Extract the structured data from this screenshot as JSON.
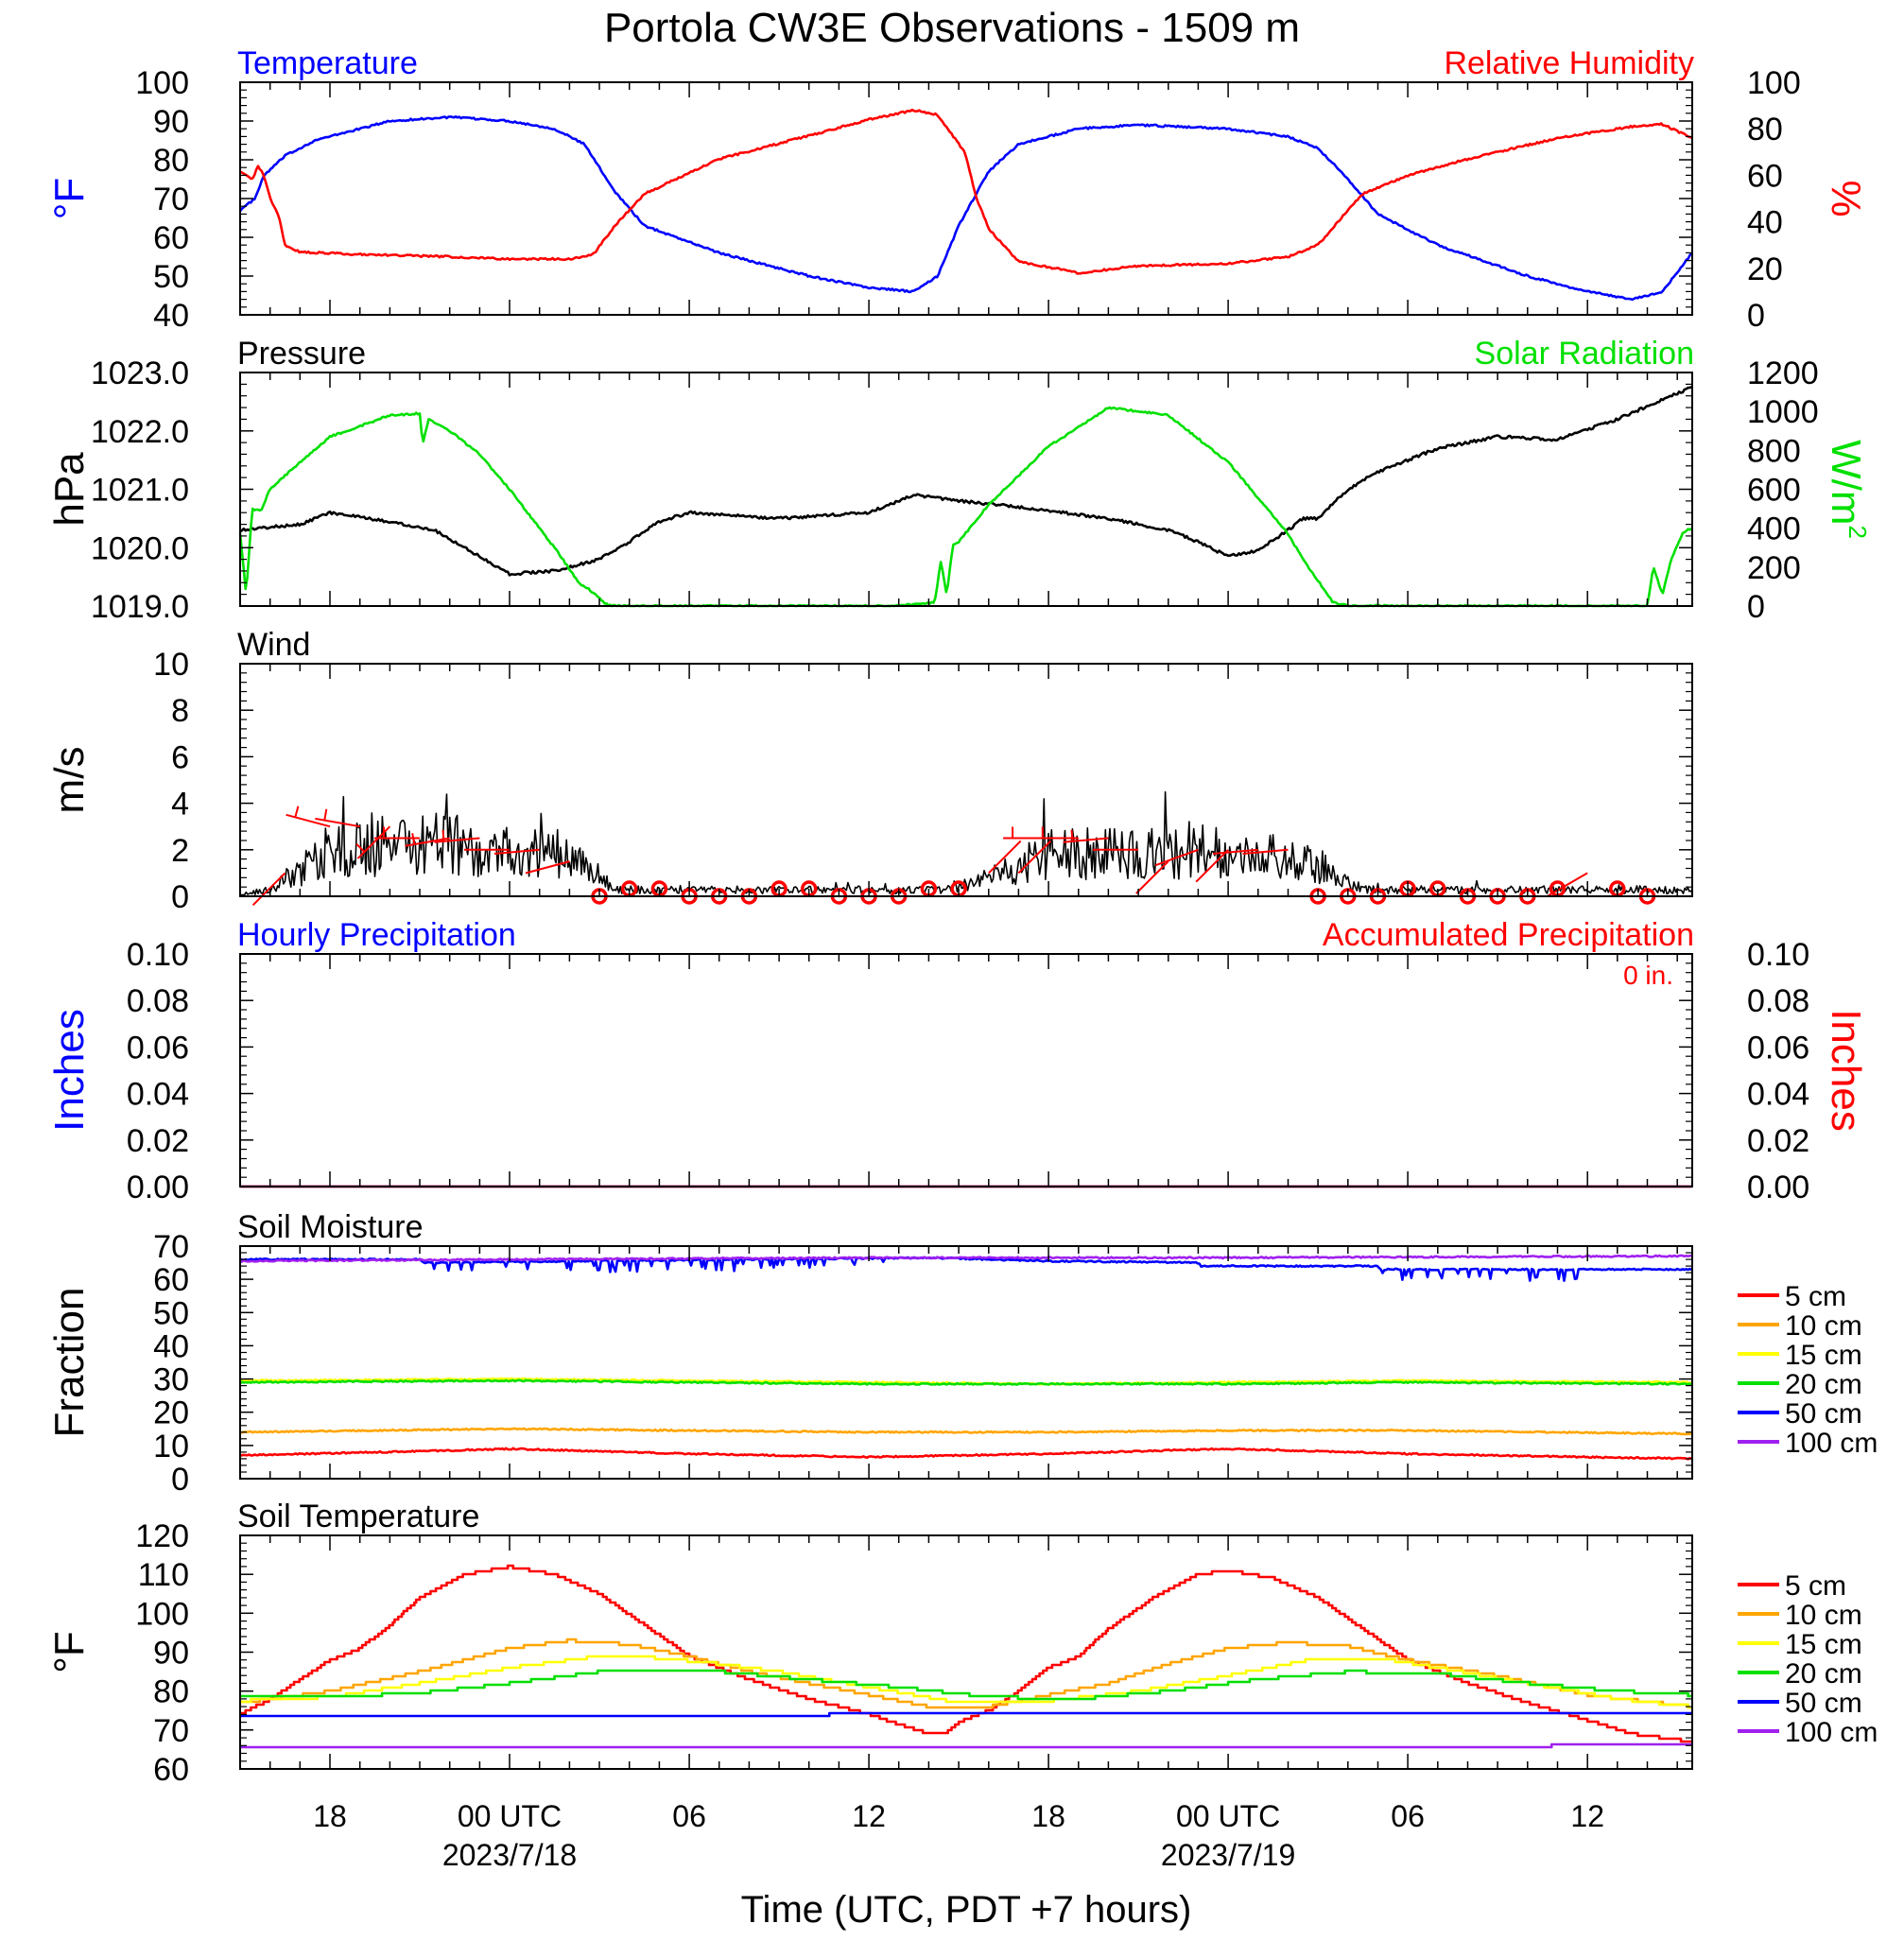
{
  "title": "Portola CW3E Observations - 1509 m",
  "xlabel": "Time (UTC, PDT +7 hours)",
  "colors": {
    "temperature": "#0000ff",
    "humidity": "#ff0000",
    "pressure": "#000000",
    "solar": "#00e000",
    "wind": "#000000",
    "barb": "#ff0000",
    "soil": [
      "#ff0000",
      "#ffa500",
      "#ffff00",
      "#00e000",
      "#0000ff",
      "#a020f0"
    ]
  },
  "time_axis": {
    "start_hour": -9.0,
    "end_hour": 39.5,
    "major_hours": [
      -6,
      0,
      6,
      12,
      18,
      24,
      30,
      36
    ],
    "tick_labels": [
      "18",
      "00 UTC",
      "06",
      "12",
      "18",
      "00 UTC",
      "06",
      "12"
    ],
    "date_labels": [
      {
        "hour": 0,
        "text": "2023/7/18"
      },
      {
        "hour": 24,
        "text": "2023/7/19"
      }
    ]
  },
  "chart_data": [
    {
      "type": "line",
      "id": "temp_rh",
      "left_title": "Temperature",
      "right_title": "Relative Humidity",
      "ylabel_left": "°F",
      "ylabel_right": "%",
      "left_ylim": [
        40,
        100
      ],
      "left_ticks": [
        "40",
        "50",
        "60",
        "70",
        "80",
        "90",
        "100"
      ],
      "right_ylim": [
        0,
        100
      ],
      "right_ticks": [
        "0",
        "20",
        "40",
        "60",
        "80",
        "100"
      ],
      "series": [
        {
          "name": "Temperature",
          "axis": "left",
          "color_key": "temperature",
          "x": [
            -9,
            -8.5,
            -8.2,
            -7.5,
            -6.5,
            -4,
            -2,
            0,
            1.5,
            2.5,
            3.5,
            4.5,
            7,
            10,
            12,
            13.5,
            14.3,
            15,
            16,
            17,
            19,
            21,
            24,
            26,
            27,
            28,
            29,
            31,
            34,
            36,
            37.5,
            38.5,
            39.5
          ],
          "y": [
            67,
            70,
            76,
            81,
            85,
            90,
            91,
            90,
            88,
            84,
            72,
            63,
            56,
            50,
            47,
            46,
            50,
            63,
            77,
            84,
            88,
            89,
            88,
            86,
            83,
            75,
            66,
            58,
            50,
            46,
            44,
            46,
            56
          ]
        },
        {
          "name": "Relative Humidity",
          "axis": "right",
          "color_key": "humidity",
          "x": [
            -9,
            -8.6,
            -8.4,
            -8.2,
            -8,
            -7.7,
            -7.5,
            -7,
            -5,
            -2,
            0,
            2,
            2.8,
            3.5,
            4.5,
            7,
            10,
            12,
            13.5,
            14.3,
            15.2,
            15.6,
            16,
            17,
            19,
            21,
            24,
            26,
            27,
            28,
            28.5,
            30,
            32,
            35,
            37.5,
            38.5,
            39.5
          ],
          "y": [
            62,
            58,
            64,
            60,
            50,
            42,
            30,
            27,
            26,
            25,
            24,
            24,
            26,
            38,
            52,
            67,
            77,
            84,
            88,
            86,
            70,
            50,
            37,
            23,
            18,
            21,
            22,
            25,
            30,
            45,
            52,
            60,
            67,
            76,
            81,
            82,
            76
          ]
        }
      ]
    },
    {
      "type": "line",
      "id": "pressure_solar",
      "left_title": "Pressure",
      "right_title": "Solar Radiation",
      "ylabel_left": "hPa",
      "ylabel_right": "W/m",
      "ylabel_right_sup": "2",
      "left_ylim": [
        1019.0,
        1023.0
      ],
      "left_ticks": [
        "1019.0",
        "1020.0",
        "1021.0",
        "1022.0",
        "1023.0"
      ],
      "right_ylim": [
        0,
        1200
      ],
      "right_ticks": [
        "0",
        "200",
        "400",
        "600",
        "800",
        "1000",
        "1200"
      ],
      "series": [
        {
          "name": "Pressure",
          "axis": "left",
          "color_key": "pressure",
          "x": [
            -9,
            -7,
            -6,
            -3.5,
            -2.5,
            -1.5,
            0,
            1.5,
            3,
            4,
            5,
            6,
            9,
            12,
            13.5,
            15,
            17,
            20,
            22,
            23,
            24,
            25,
            26,
            26.5,
            27,
            28,
            29,
            31,
            33,
            35,
            37,
            39.5
          ],
          "y": [
            1020.3,
            1020.4,
            1020.6,
            1020.4,
            1020.3,
            1020.0,
            1019.55,
            1019.6,
            1019.8,
            1020.1,
            1020.45,
            1020.6,
            1020.5,
            1020.6,
            1020.9,
            1020.8,
            1020.7,
            1020.5,
            1020.3,
            1020.1,
            1019.85,
            1019.95,
            1020.3,
            1020.5,
            1020.5,
            1021.0,
            1021.3,
            1021.7,
            1021.9,
            1021.85,
            1022.2,
            1022.75
          ]
        },
        {
          "name": "Solar Radiation",
          "axis": "right",
          "color_key": "solar",
          "x": [
            -9,
            -8.8,
            -8.6,
            -8.3,
            -8,
            -7,
            -6,
            -4,
            -3,
            -2.9,
            -2.7,
            -2,
            -1,
            0,
            1,
            1.5,
            2,
            2.3,
            2.8,
            3.2,
            3.6,
            10,
            13,
            14.2,
            14.4,
            14.6,
            14.8,
            15,
            16,
            18,
            20,
            22,
            24,
            26,
            26.5,
            27,
            27.5,
            28,
            35.5,
            38,
            38.2,
            38.5,
            38.8,
            39.2,
            39.5
          ],
          "y": [
            380,
            60,
            500,
            490,
            600,
            740,
            870,
            980,
            990,
            830,
            960,
            900,
            780,
            600,
            400,
            300,
            190,
            120,
            70,
            10,
            0,
            0,
            0,
            20,
            230,
            60,
            310,
            330,
            520,
            820,
            1020,
            980,
            740,
            370,
            240,
            130,
            20,
            0,
            0,
            0,
            200,
            60,
            240,
            380,
            400
          ]
        }
      ]
    },
    {
      "type": "line",
      "id": "wind",
      "left_title": "Wind",
      "ylabel_left": "m/s",
      "left_ylim": [
        0,
        10
      ],
      "left_ticks": [
        "0",
        "2",
        "4",
        "6",
        "8",
        "10"
      ],
      "series": [
        {
          "name": "Wind",
          "axis": "left",
          "color_key": "wind",
          "x": [
            -9,
            -8,
            -7.5,
            -6,
            -4,
            -2,
            0,
            1,
            2,
            2.5,
            3,
            3.5,
            5,
            10,
            14,
            14.5,
            15,
            16,
            18,
            20,
            24,
            26,
            27,
            28,
            28.5,
            30,
            35,
            39.5
          ],
          "y": [
            0.1,
            0.3,
            0.8,
            2.0,
            2.5,
            2.4,
            2.1,
            2.0,
            1.9,
            1.6,
            0.9,
            0.3,
            0.3,
            0.3,
            0.3,
            0.3,
            0.5,
            0.8,
            1.9,
            2.0,
            2.1,
            1.8,
            1.6,
            0.7,
            0.3,
            0.3,
            0.3,
            0.3
          ]
        }
      ],
      "barbs": [
        {
          "x": -7.5,
          "speed": 1,
          "dir": 225
        },
        {
          "x": -6,
          "speed": 3,
          "dir": 285
        },
        {
          "x": -5,
          "speed": 3,
          "dir": 280
        },
        {
          "x": -4,
          "speed": 3,
          "dir": 225
        },
        {
          "x": -3,
          "speed": 2.5,
          "dir": 270
        },
        {
          "x": -2,
          "speed": 2.5,
          "dir": 260
        },
        {
          "x": -1,
          "speed": 2.5,
          "dir": 265
        },
        {
          "x": 0,
          "speed": 2,
          "dir": 270
        },
        {
          "x": 1,
          "speed": 2,
          "dir": 265
        },
        {
          "x": 2,
          "speed": 1.5,
          "dir": 255
        },
        {
          "x": 16,
          "speed": 1,
          "dir": 45
        },
        {
          "x": 17,
          "speed": 1,
          "dir": 45
        },
        {
          "x": 18,
          "speed": 2.5,
          "dir": 270
        },
        {
          "x": 19,
          "speed": 2.5,
          "dir": 270
        },
        {
          "x": 20,
          "speed": 2.5,
          "dir": 265
        },
        {
          "x": 21,
          "speed": 2,
          "dir": 270
        },
        {
          "x": 22,
          "speed": 1.5,
          "dir": 225
        },
        {
          "x": 23,
          "speed": 2,
          "dir": 250
        },
        {
          "x": 24,
          "speed": 2,
          "dir": 225
        },
        {
          "x": 25,
          "speed": 2,
          "dir": 265
        },
        {
          "x": 26,
          "speed": 2,
          "dir": 265
        },
        {
          "x": 36,
          "speed": 1,
          "dir": 240
        }
      ],
      "calm_hours": [
        3,
        4,
        5,
        6,
        7,
        8,
        9,
        10,
        11,
        12,
        13,
        14,
        15,
        27,
        28,
        29,
        30,
        31,
        32,
        33,
        34,
        35,
        37,
        38
      ]
    },
    {
      "type": "line",
      "id": "precip",
      "left_title": "Hourly Precipitation",
      "right_title": "Accumulated Precipitation",
      "annotation": "0 in.",
      "ylabel_left": "Inches",
      "ylabel_right": "Inches",
      "left_ylim": [
        0,
        0.1
      ],
      "left_ticks": [
        "0.00",
        "0.02",
        "0.04",
        "0.06",
        "0.08",
        "0.10"
      ],
      "right_ylim": [
        0,
        0.1
      ],
      "right_ticks": [
        "0.00",
        "0.02",
        "0.04",
        "0.06",
        "0.08",
        "0.10"
      ],
      "series": [
        {
          "name": "Hourly Precipitation",
          "axis": "left",
          "color_key": "temperature",
          "x": [
            -9,
            39.5
          ],
          "y": [
            0,
            0
          ]
        },
        {
          "name": "Accumulated Precipitation",
          "axis": "right",
          "color_key": "humidity",
          "x": [
            -9,
            39.5
          ],
          "y": [
            0,
            0
          ]
        }
      ]
    },
    {
      "type": "line",
      "id": "soil_moisture",
      "left_title": "Soil Moisture",
      "ylabel_left": "Fraction",
      "left_ylim": [
        0,
        70
      ],
      "left_ticks": [
        "0",
        "10",
        "20",
        "30",
        "40",
        "50",
        "60",
        "70"
      ],
      "legend": "right",
      "series": [
        {
          "name": "5 cm",
          "color_index": 0,
          "x": [
            -9,
            -2,
            0,
            6,
            12,
            18,
            24,
            30,
            36,
            39.5
          ],
          "y": [
            7,
            8.5,
            9,
            7.5,
            6.5,
            7.5,
            9,
            7.5,
            6.5,
            6
          ]
        },
        {
          "name": "10 cm",
          "color_index": 1,
          "x": [
            -9,
            0,
            6,
            12,
            18,
            24,
            30,
            39.5
          ],
          "y": [
            14,
            15,
            14.5,
            14,
            14,
            14.5,
            14.5,
            13.5
          ]
        },
        {
          "name": "15 cm",
          "color_index": 2,
          "x": [
            -9,
            0,
            6,
            12,
            18,
            24,
            30,
            39.5
          ],
          "y": [
            29.5,
            30,
            29.5,
            29,
            28.5,
            29,
            29.5,
            29
          ]
        },
        {
          "name": "20 cm",
          "color_index": 3,
          "x": [
            -9,
            0,
            6,
            12,
            18,
            24,
            30,
            39.5
          ],
          "y": [
            29,
            29.5,
            29,
            28.5,
            28.5,
            28.5,
            29,
            28.5
          ]
        },
        {
          "name": "50 cm",
          "color_index": 4,
          "x": [
            -9,
            -3,
            -2.9,
            14,
            18,
            23,
            23.1,
            29,
            29.1,
            39.5
          ],
          "y": [
            66,
            66,
            65,
            66.5,
            65.5,
            65,
            64,
            64,
            63,
            63
          ]
        },
        {
          "name": "100 cm",
          "color_index": 5,
          "x": [
            -9,
            0,
            12,
            24,
            39.5
          ],
          "y": [
            65.5,
            66,
            66.5,
            66.5,
            67
          ]
        }
      ]
    },
    {
      "type": "line",
      "id": "soil_temperature",
      "left_title": "Soil Temperature",
      "ylabel_left": "°F",
      "left_ylim": [
        60,
        120
      ],
      "left_ticks": [
        "60",
        "70",
        "80",
        "90",
        "100",
        "110",
        "120"
      ],
      "legend": "right",
      "series": [
        {
          "name": "5 cm",
          "color_index": 0,
          "x": [
            -9,
            -8,
            -7,
            -6,
            -5,
            -4,
            -3,
            -1.5,
            0,
            1.5,
            3,
            4.5,
            6,
            8,
            10,
            12,
            13,
            14,
            14.5,
            15,
            16,
            17,
            18,
            19,
            20,
            21.5,
            23,
            24,
            25.5,
            27,
            28.5,
            30,
            32,
            34,
            36,
            37.5,
            39.5
          ],
          "y": [
            74,
            78,
            83,
            88,
            91,
            97,
            104,
            110,
            112,
            110,
            105,
            97,
            89,
            83,
            78,
            74,
            71.5,
            69,
            69,
            72,
            75,
            80,
            86,
            89,
            96,
            104,
            110,
            111,
            109,
            104,
            96,
            88,
            82,
            77,
            72.5,
            69,
            67
          ]
        },
        {
          "name": "10 cm",
          "color_index": 1,
          "x": [
            -9,
            -6,
            -3,
            0,
            2,
            4,
            6,
            8,
            10,
            12,
            14,
            16,
            18,
            20,
            22,
            24,
            26,
            28,
            30,
            33,
            36,
            39.5
          ],
          "y": [
            77,
            80,
            85,
            91,
            93,
            92,
            89,
            85,
            82,
            79,
            76,
            76,
            79,
            82,
            87,
            91,
            92.5,
            91.5,
            88,
            84,
            79,
            76
          ]
        },
        {
          "name": "15 cm",
          "color_index": 2,
          "x": [
            -9,
            -6,
            -3,
            0,
            3,
            5,
            7,
            9,
            12,
            15,
            18,
            21,
            24,
            27,
            29,
            31,
            34,
            37,
            39.5
          ],
          "y": [
            77.5,
            78.5,
            82,
            86,
            89,
            88.5,
            87,
            85,
            81,
            77,
            77.5,
            80,
            84,
            88.5,
            88.5,
            86,
            82,
            78,
            76
          ]
        },
        {
          "name": "20 cm",
          "color_index": 3,
          "x": [
            -9,
            -6,
            -3,
            0,
            3,
            5,
            7,
            10,
            13,
            16,
            19,
            22,
            25,
            28,
            31,
            34,
            37,
            39.5
          ],
          "y": [
            78.5,
            78.5,
            79.5,
            82,
            85,
            85.5,
            85,
            83,
            81,
            78.5,
            78,
            80,
            83,
            85,
            84.5,
            82,
            80,
            79
          ]
        },
        {
          "name": "50 cm",
          "color_index": 4,
          "x": [
            -9,
            12,
            39.5
          ],
          "y": [
            73.5,
            74,
            74.5
          ]
        },
        {
          "name": "100 cm",
          "color_index": 5,
          "x": [
            -9,
            39.5
          ],
          "y": [
            65.5,
            66
          ]
        }
      ]
    }
  ]
}
